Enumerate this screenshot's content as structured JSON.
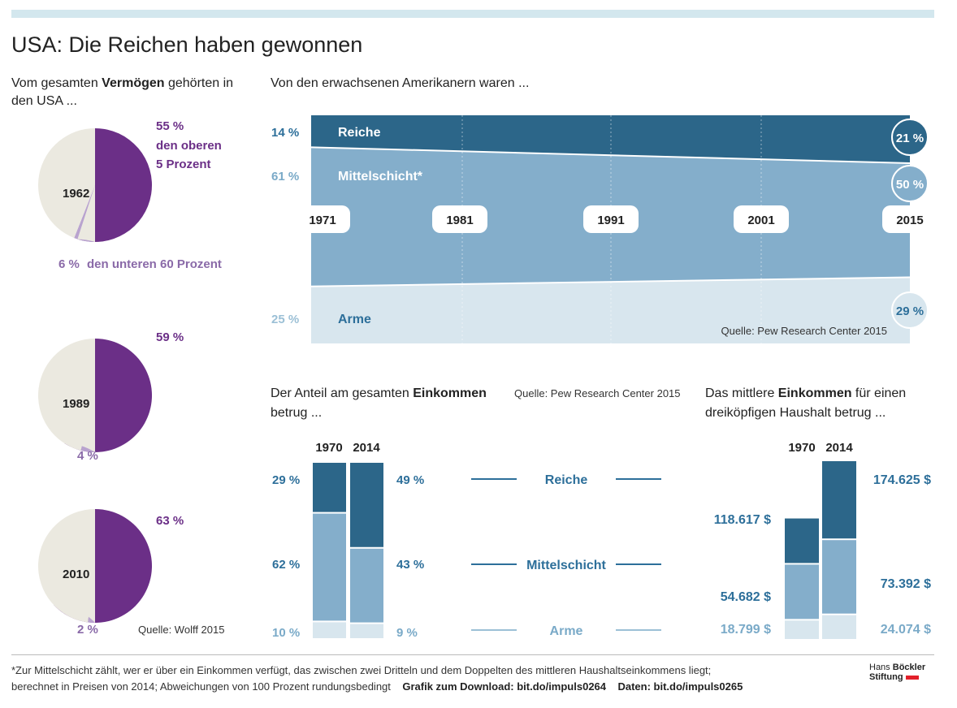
{
  "title": "USA: Die Reichen haben gewonnen",
  "colors": {
    "purple": "#6b2f87",
    "purple_light": "#b9a3cf",
    "beige": "#ebe9e0",
    "rich": "#2c6689",
    "middle": "#84aecb",
    "poor": "#d8e6ee",
    "label_blue": "#2d6f9a",
    "label_light": "#7aaac8"
  },
  "wealth": {
    "intro_pre": "Vom gesamten ",
    "intro_bold": "Vermögen",
    "intro_post": " gehörten in den USA ...",
    "top_label_line1": "den oberen",
    "top_label_line2": "5 Prozent",
    "bottom_label": "den unteren 60 Prozent",
    "source": "Quelle: Wolff 2015"
  },
  "flow": {
    "intro": "Von den erwachsenen Amerikanern waren ...",
    "rich_label": "Reiche",
    "middle_label": "Mittelschicht*",
    "poor_label": "Arme",
    "rich_start": "14 %",
    "middle_start": "61 %",
    "poor_start": "25 %",
    "rich_end": "21 %",
    "middle_end": "50 %",
    "poor_end": "29 %",
    "years": [
      "1971",
      "1981",
      "1991",
      "2001",
      "2015"
    ],
    "source": "Quelle:  Pew Research Center 2015"
  },
  "income_share": {
    "intro_pre": "Der Anteil am gesamten ",
    "intro_bold": "Einkommen",
    "intro_post": "betrug ...",
    "source": "Quelle:  Pew Research Center 2015",
    "year_a": "1970",
    "year_b": "2014",
    "categories": [
      "Reiche",
      "Mittelschicht",
      "Arme"
    ],
    "labels_a": [
      "29 %",
      "62 %",
      "10 %"
    ],
    "labels_b": [
      "49 %",
      "43 %",
      "9 %"
    ]
  },
  "median_income": {
    "intro_pre": "Das mittlere ",
    "intro_bold": "Einkommen",
    "intro_post": " für einen",
    "intro_line2": "dreiköpfigen Haushalt betrug ...",
    "year_a": "1970",
    "year_b": "2014",
    "labels_a": [
      "118.617 $",
      "54.682 $",
      "18.799 $"
    ],
    "labels_b": [
      "174.625 $",
      "73.392 $",
      "24.074 $"
    ]
  },
  "footnote": {
    "line1": "*Zur Mittelschicht zählt, wer er über ein Einkommen verfügt, das zwischen zwei Dritteln und dem Doppelten des mittleren Haushaltseinkommens liegt;",
    "line2": "berechnet in Preisen von 2014; Abweichungen von 100 Prozent rundungsbedingt",
    "download": "Grafik zum Download: bit.do/impuls0264",
    "data": "Daten: bit.do/impuls0265"
  },
  "logo": {
    "line1": "Hans ",
    "line1_bold": "Böckler",
    "line2": "Stiftung"
  },
  "chart_data": [
    {
      "type": "pie",
      "title": "Vom gesamten Vermögen gehörten in den USA ...",
      "pies": [
        {
          "year": "1962",
          "top5": 55,
          "bottom60": 6,
          "top5_label": "55 %",
          "bottom60_label": "6 %"
        },
        {
          "year": "1989",
          "top5": 59,
          "bottom60": 4,
          "top5_label": "59 %",
          "bottom60_label": "4 %"
        },
        {
          "year": "2010",
          "top5": 63,
          "bottom60": 2,
          "top5_label": "63 %",
          "bottom60_label": "2 %"
        }
      ]
    },
    {
      "type": "area",
      "title": "Von den erwachsenen Amerikanern waren ...",
      "x": [
        1971,
        2015
      ],
      "series": [
        {
          "name": "Reiche",
          "values": [
            14,
            21
          ]
        },
        {
          "name": "Mittelschicht*",
          "values": [
            61,
            50
          ]
        },
        {
          "name": "Arme",
          "values": [
            25,
            29
          ]
        }
      ],
      "unit": "%"
    },
    {
      "type": "bar",
      "title": "Der Anteil am gesamten Einkommen betrug ...",
      "categories": [
        "1970",
        "2014"
      ],
      "series": [
        {
          "name": "Reiche",
          "values": [
            29,
            49
          ]
        },
        {
          "name": "Mittelschicht",
          "values": [
            62,
            43
          ]
        },
        {
          "name": "Arme",
          "values": [
            10,
            9
          ]
        }
      ],
      "stacked": true,
      "unit": "%"
    },
    {
      "type": "bar",
      "title": "Das mittlere Einkommen für einen dreiköpfigen Haushalt betrug ...",
      "categories": [
        "1970",
        "2014"
      ],
      "series": [
        {
          "name": "Reiche",
          "values": [
            118617,
            174625
          ]
        },
        {
          "name": "Mittelschicht",
          "values": [
            54682,
            73392
          ]
        },
        {
          "name": "Arme",
          "values": [
            18799,
            24074
          ]
        }
      ],
      "unit": "$"
    }
  ]
}
